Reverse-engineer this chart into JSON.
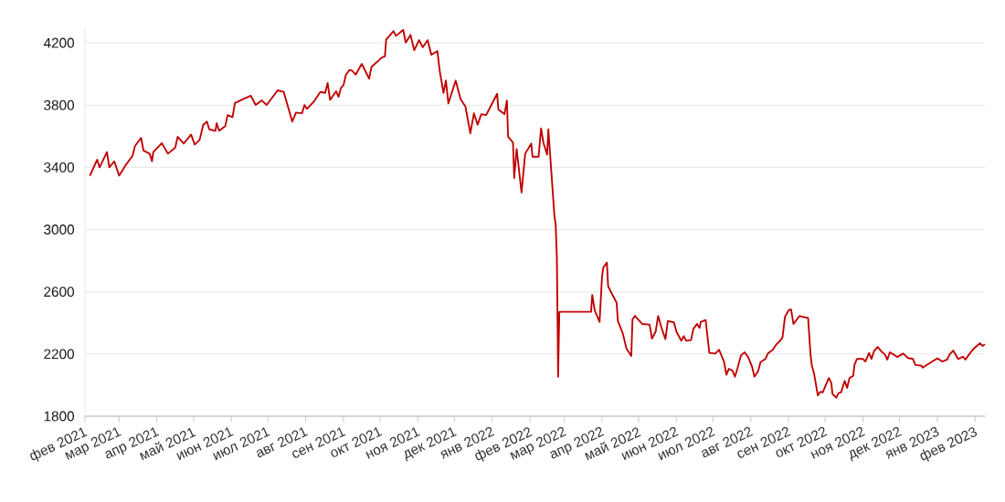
{
  "chart_data": {
    "type": "line",
    "color": "#c00000",
    "grid": "y",
    "x": [
      "2021-02-05",
      "2021-02-11",
      "2021-02-13",
      "2021-02-19",
      "2021-02-21",
      "2021-02-25",
      "2021-03-01",
      "2021-03-06",
      "2021-03-12",
      "2021-03-14",
      "2021-03-19",
      "2021-03-21",
      "2021-03-26",
      "2021-03-28",
      "2021-03-29",
      "2021-04-05",
      "2021-04-10",
      "2021-04-16",
      "2021-04-18",
      "2021-04-23",
      "2021-04-29",
      "2021-05-02",
      "2021-05-06",
      "2021-05-09",
      "2021-05-12",
      "2021-05-14",
      "2021-05-19",
      "2021-05-20",
      "2021-05-22",
      "2021-05-27",
      "2021-05-29",
      "2021-06-02",
      "2021-06-04",
      "2021-06-11",
      "2021-06-17",
      "2021-06-21",
      "2021-06-26",
      "2021-06-30",
      "2021-07-09",
      "2021-07-14",
      "2021-07-21",
      "2021-07-24",
      "2021-07-29",
      "2021-07-31",
      "2021-08-02",
      "2021-08-08",
      "2021-08-13",
      "2021-08-17",
      "2021-08-19",
      "2021-08-21",
      "2021-08-26",
      "2021-08-28",
      "2021-08-30",
      "2021-09-01",
      "2021-09-03",
      "2021-09-06",
      "2021-09-08",
      "2021-09-11",
      "2021-09-16",
      "2021-09-22",
      "2021-09-24",
      "2021-09-29",
      "2021-10-02",
      "2021-10-05",
      "2021-10-06",
      "2021-10-12",
      "2021-10-14",
      "2021-10-20",
      "2021-10-22",
      "2021-10-26",
      "2021-10-29",
      "2021-11-02",
      "2021-11-05",
      "2021-11-09",
      "2021-11-12",
      "2021-11-17",
      "2021-11-19",
      "2021-11-22",
      "2021-11-24",
      "2021-11-26",
      "2021-12-02",
      "2021-12-06",
      "2021-12-10",
      "2021-12-14",
      "2021-12-17",
      "2021-12-20",
      "2021-12-23",
      "2021-12-27",
      "2021-12-30",
      "2022-01-05",
      "2022-01-06",
      "2022-01-11",
      "2022-01-13",
      "2022-01-14",
      "2022-01-18",
      "2022-01-19",
      "2022-01-21",
      "2022-01-25",
      "2022-01-28",
      "2022-02-02",
      "2022-02-03",
      "2022-02-08",
      "2022-02-10",
      "2022-02-12",
      "2022-02-15",
      "2022-02-16",
      "2022-02-21",
      "2022-02-22",
      "2022-02-23",
      "2022-02-24",
      "2022-02-25",
      "2022-03-23",
      "2022-03-24",
      "2022-03-26",
      "2022-03-30",
      "2022-04-01",
      "2022-04-02",
      "2022-04-05",
      "2022-04-06",
      "2022-04-08",
      "2022-04-13",
      "2022-04-14",
      "2022-04-18",
      "2022-04-21",
      "2022-04-25",
      "2022-04-26",
      "2022-04-28",
      "2022-05-04",
      "2022-05-10",
      "2022-05-12",
      "2022-05-15",
      "2022-05-17",
      "2022-05-20",
      "2022-05-23",
      "2022-05-25",
      "2022-05-30",
      "2022-06-01",
      "2022-06-05",
      "2022-06-07",
      "2022-06-09",
      "2022-06-13",
      "2022-06-15",
      "2022-06-18",
      "2022-06-20",
      "2022-06-21",
      "2022-06-25",
      "2022-06-28",
      "2022-07-03",
      "2022-07-06",
      "2022-07-10",
      "2022-07-12",
      "2022-07-14",
      "2022-07-17",
      "2022-07-19",
      "2022-07-21",
      "2022-07-24",
      "2022-07-27",
      "2022-07-30",
      "2022-08-02",
      "2022-08-04",
      "2022-08-07",
      "2022-08-09",
      "2022-08-13",
      "2022-08-15",
      "2022-08-19",
      "2022-08-22",
      "2022-08-24",
      "2022-08-27",
      "2022-08-29",
      "2022-09-01",
      "2022-09-03",
      "2022-09-05",
      "2022-09-10",
      "2022-09-13",
      "2022-09-17",
      "2022-09-19",
      "2022-09-20",
      "2022-09-22",
      "2022-09-25",
      "2022-09-27",
      "2022-09-29",
      "2022-10-04",
      "2022-10-06",
      "2022-10-07",
      "2022-10-10",
      "2022-10-12",
      "2022-10-14",
      "2022-10-17",
      "2022-10-19",
      "2022-10-21",
      "2022-10-24",
      "2022-10-25",
      "2022-10-27",
      "2022-11-01",
      "2022-11-03",
      "2022-11-06",
      "2022-11-08",
      "2022-11-10",
      "2022-11-13",
      "2022-11-16",
      "2022-11-19",
      "2022-11-21",
      "2022-11-23",
      "2022-11-26",
      "2022-11-29",
      "2022-12-04",
      "2022-12-08",
      "2022-12-12",
      "2022-12-14",
      "2022-12-19",
      "2022-12-20",
      "2022-12-24",
      "2022-12-27",
      "2023-01-01",
      "2023-01-05",
      "2023-01-09",
      "2023-01-11",
      "2023-01-14",
      "2023-01-18",
      "2023-01-22",
      "2023-01-24",
      "2023-01-27",
      "2023-01-31",
      "2023-02-05",
      "2023-02-07",
      "2023-02-09"
    ],
    "values": [
      3345,
      3449,
      3400,
      3498,
      3400,
      3439,
      3347,
      3410,
      3474,
      3537,
      3590,
      3508,
      3488,
      3439,
      3498,
      3556,
      3488,
      3527,
      3596,
      3553,
      3611,
      3547,
      3576,
      3674,
      3694,
      3644,
      3635,
      3684,
      3635,
      3664,
      3736,
      3723,
      3814,
      3840,
      3860,
      3801,
      3830,
      3801,
      3895,
      3885,
      3694,
      3752,
      3748,
      3801,
      3776,
      3826,
      3885,
      3879,
      3942,
      3834,
      3889,
      3854,
      3912,
      3928,
      3996,
      4026,
      4022,
      3996,
      4065,
      3971,
      4046,
      4081,
      4104,
      4114,
      4222,
      4276,
      4245,
      4284,
      4202,
      4251,
      4153,
      4218,
      4172,
      4218,
      4124,
      4147,
      4016,
      3879,
      3958,
      3811,
      3958,
      3840,
      3791,
      3619,
      3748,
      3674,
      3742,
      3736,
      3782,
      3873,
      3772,
      3742,
      3830,
      3596,
      3560,
      3332,
      3518,
      3239,
      3488,
      3553,
      3468,
      3468,
      3650,
      3556,
      3482,
      3644,
      3087,
      3032,
      2813,
      2054,
      2471,
      2471,
      2579,
      2481,
      2406,
      2696,
      2755,
      2788,
      2637,
      2604,
      2529,
      2412,
      2334,
      2236,
      2187,
      2422,
      2445,
      2393,
      2389,
      2299,
      2344,
      2445,
      2363,
      2295,
      2412,
      2403,
      2344,
      2285,
      2315,
      2285,
      2289,
      2363,
      2393,
      2367,
      2406,
      2418,
      2207,
      2203,
      2227,
      2152,
      2066,
      2105,
      2093,
      2054,
      2105,
      2191,
      2211,
      2178,
      2119,
      2054,
      2089,
      2148,
      2168,
      2203,
      2227,
      2262,
      2276,
      2305,
      2438,
      2481,
      2487,
      2393,
      2445,
      2438,
      2432,
      2197,
      2129,
      2070,
      1933,
      1957,
      1953,
      2046,
      2015,
      1943,
      1919,
      1949,
      1953,
      2027,
      1982,
      2046,
      2060,
      2129,
      2168,
      2168,
      2152,
      2207,
      2168,
      2217,
      2246,
      2217,
      2197,
      2164,
      2211,
      2197,
      2181,
      2203,
      2174,
      2168,
      2129,
      2125,
      2113,
      2133,
      2148,
      2172,
      2152,
      2164,
      2197,
      2222,
      2168,
      2183,
      2164,
      2197,
      2236,
      2269,
      2252,
      2262
    ],
    "xlim": [
      "2021-02-01",
      "2023-02-09"
    ],
    "ylim": [
      1800,
      4300
    ],
    "yticks": [
      1800,
      2200,
      2600,
      3000,
      3400,
      3800,
      4200
    ],
    "xticks": [
      {
        "value": "2021-02-01",
        "label": "фев 2021"
      },
      {
        "value": "2021-03-01",
        "label": "мар 2021"
      },
      {
        "value": "2021-04-01",
        "label": "апр 2021"
      },
      {
        "value": "2021-05-01",
        "label": "май 2021"
      },
      {
        "value": "2021-06-01",
        "label": "июн 2021"
      },
      {
        "value": "2021-07-01",
        "label": "июл 2021"
      },
      {
        "value": "2021-08-01",
        "label": "авг 2021"
      },
      {
        "value": "2021-09-01",
        "label": "сен 2021"
      },
      {
        "value": "2021-10-01",
        "label": "окт 2021"
      },
      {
        "value": "2021-11-01",
        "label": "ноя 2021"
      },
      {
        "value": "2021-12-01",
        "label": "дек 2021"
      },
      {
        "value": "2022-01-01",
        "label": "янв 2022"
      },
      {
        "value": "2022-02-01",
        "label": "фев 2022"
      },
      {
        "value": "2022-03-01",
        "label": "мар 2022"
      },
      {
        "value": "2022-04-01",
        "label": "апр 2022"
      },
      {
        "value": "2022-05-01",
        "label": "май 2022"
      },
      {
        "value": "2022-06-01",
        "label": "июн 2022"
      },
      {
        "value": "2022-07-01",
        "label": "июл 2022"
      },
      {
        "value": "2022-08-01",
        "label": "авг 2022"
      },
      {
        "value": "2022-09-01",
        "label": "сен 2022"
      },
      {
        "value": "2022-10-01",
        "label": "окт 2022"
      },
      {
        "value": "2022-11-01",
        "label": "ноя 2022"
      },
      {
        "value": "2022-12-01",
        "label": "дек 2022"
      },
      {
        "value": "2023-01-01",
        "label": "янв 2023"
      },
      {
        "value": "2023-02-01",
        "label": "фев 2023"
      }
    ]
  }
}
